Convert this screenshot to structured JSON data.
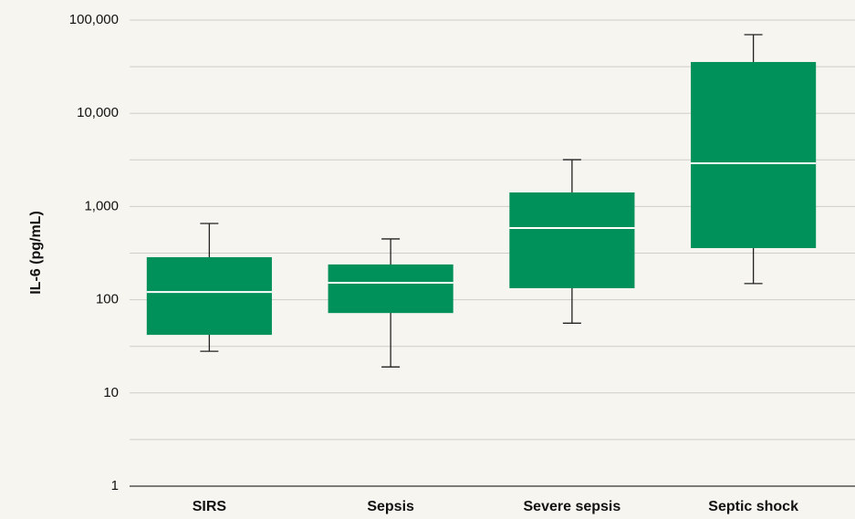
{
  "chart_data": {
    "type": "box",
    "y_label": "IL-6 (pg/mL)",
    "categories": [
      "SIRS",
      "Sepsis",
      "Severe sepsis",
      "Septic shock"
    ],
    "whisker_low": [
      28,
      19,
      56,
      149
    ],
    "q1": [
      42,
      72,
      133,
      358
    ],
    "median": [
      121,
      152,
      588,
      2910
    ],
    "q3": [
      286,
      239,
      1415,
      35500
    ],
    "whisker_high": [
      658,
      449,
      3180,
      69700
    ],
    "color": "#00915a",
    "median_color": "#ffffff",
    "log_scale": true,
    "grid": true,
    "ylim": [
      1,
      100000
    ],
    "yticks": [
      1,
      10,
      100,
      {
        "value": 1000,
        "label": "1,000"
      },
      {
        "value": 10000,
        "label": "10,000"
      },
      {
        "value": 100000,
        "label": "100,000"
      }
    ],
    "minor_yticks": [
      3.162,
      31.62,
      316.2,
      3162,
      31620
    ]
  }
}
